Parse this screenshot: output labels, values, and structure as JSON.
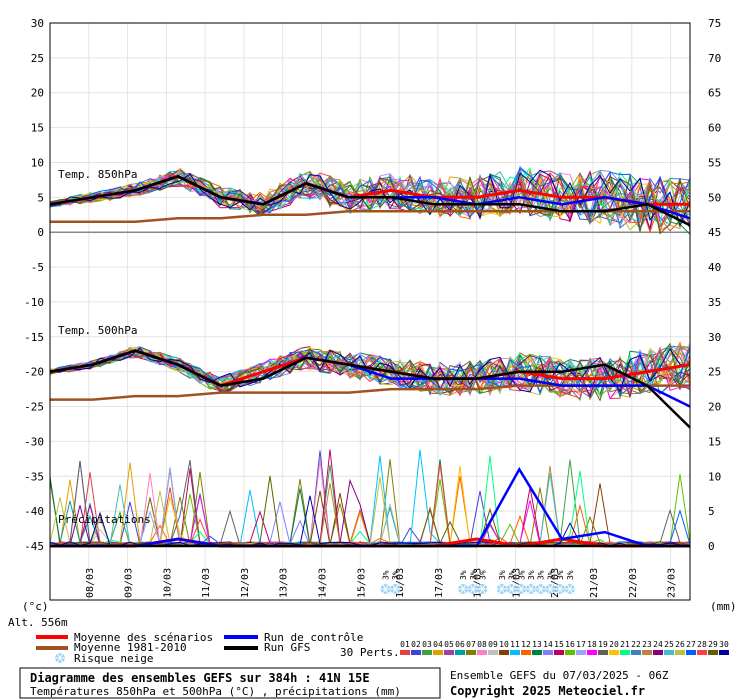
{
  "chart_data": {
    "type": "line",
    "x": [
      "08/03",
      "09/03",
      "10/03",
      "11/03",
      "12/03",
      "13/03",
      "14/03",
      "15/03",
      "16/03",
      "17/03",
      "18/03",
      "19/03",
      "20/03",
      "21/03",
      "22/03",
      "23/03"
    ],
    "left_axis": {
      "unit": "(°c)",
      "ticks": [
        "30",
        "25",
        "20",
        "15",
        "10",
        "5",
        "0",
        "-5",
        "-10",
        "-15",
        "-20",
        "-25",
        "-30",
        "-35",
        "-40",
        "-45"
      ],
      "ylim": [
        -45,
        30
      ]
    },
    "right_axis": {
      "unit": "(mm)",
      "ticks": [
        "75",
        "70",
        "65",
        "60",
        "55",
        "50",
        "45",
        "40",
        "35",
        "30",
        "25",
        "20",
        "15",
        "10",
        "5",
        "0"
      ],
      "ylim": [
        0,
        75
      ]
    },
    "altitude": "Alt. 556m",
    "panels": [
      {
        "label": "Temp. 850hPa"
      },
      {
        "label": "Temp. 500hPa"
      },
      {
        "label": "Précipitations"
      }
    ],
    "series": [
      {
        "name": "Moyenne des scénarios",
        "color": "#ff0000",
        "t850": [
          4,
          5,
          6,
          8,
          5,
          4,
          7,
          5,
          6,
          5,
          5,
          6,
          5,
          5,
          4,
          4
        ],
        "t500": [
          -20,
          -19,
          -17,
          -19,
          -22,
          -20,
          -18,
          -19,
          -20,
          -21,
          -21,
          -20,
          -21,
          -21,
          -20,
          -19
        ],
        "precip": [
          0,
          0,
          0,
          1,
          0,
          0,
          0,
          0,
          0,
          0,
          1,
          0,
          1,
          0,
          0,
          0
        ]
      },
      {
        "name": "Moyenne 1981-2010",
        "color": "#a0521e",
        "t850": [
          1.5,
          1.5,
          1.5,
          2,
          2,
          2.5,
          2.5,
          3,
          3,
          3,
          3,
          3,
          3,
          3,
          3,
          3
        ],
        "t500": [
          -24,
          -24,
          -23.5,
          -23.5,
          -23,
          -23,
          -23,
          -23,
          -22.5,
          -22.5,
          -22.5,
          -22,
          -22,
          -22,
          -22,
          -22
        ],
        "precip": []
      },
      {
        "name": "Run de contrôle",
        "color": "#0000ff",
        "t850": [
          4,
          5,
          6,
          8,
          5,
          4,
          7,
          5,
          5,
          5,
          4,
          5,
          4,
          5,
          4,
          2
        ],
        "t500": [
          -20,
          -19,
          -17,
          -19,
          -22,
          -21,
          -18,
          -19,
          -21,
          -21,
          -21,
          -21,
          -22,
          -22,
          -22,
          -25
        ],
        "precip": [
          0,
          0,
          0,
          1,
          0,
          0,
          0,
          0,
          0,
          0,
          0,
          11,
          1,
          2,
          0,
          0
        ]
      },
      {
        "name": "Run GFS",
        "color": "#000000",
        "t850": [
          4,
          5,
          6,
          8,
          5,
          4,
          7,
          5,
          5,
          4,
          4,
          4,
          3,
          3,
          4,
          1
        ],
        "t500": [
          -20,
          -19,
          -17,
          -19,
          -22,
          -21,
          -18,
          -19,
          -20,
          -21,
          -21,
          -20,
          -20,
          -19,
          -22,
          -28
        ],
        "precip": [
          0,
          0,
          0,
          0,
          0,
          0,
          0,
          0,
          0,
          0,
          0,
          0,
          0,
          0,
          0,
          0
        ]
      }
    ],
    "legend": [
      "Moyenne des scénarios",
      "Run de contrôle",
      "Moyenne 1981-2010",
      "Run GFS"
    ],
    "snow_risk": {
      "label": "Risque neige",
      "dates": [
        "16/03",
        "16/03",
        "18/03",
        "18/03",
        "18/03",
        "19/03",
        "19/03",
        "19/03",
        "19/03",
        "20/03",
        "20/03",
        "20/03",
        "20/03"
      ],
      "mark": "3%"
    },
    "perturbations": {
      "label": "30 Perts.",
      "numbers": [
        "01",
        "02",
        "03",
        "04",
        "05",
        "06",
        "07",
        "08",
        "09",
        "10",
        "11",
        "12",
        "13",
        "14",
        "15",
        "16",
        "17",
        "18",
        "19",
        "20",
        "21",
        "22",
        "23",
        "24",
        "25",
        "26",
        "27",
        "28",
        "29",
        "30"
      ],
      "colors": [
        "#e04040",
        "#4040e0",
        "#40a040",
        "#e0a000",
        "#a040a0",
        "#00a0a0",
        "#808000",
        "#ff80c0",
        "#c0c0c0",
        "#804000",
        "#00c0ff",
        "#ff6000",
        "#008040",
        "#8080ff",
        "#c00060",
        "#60c000",
        "#a0a0ff",
        "#ff00ff",
        "#606060",
        "#ffc000",
        "#00ff80",
        "#4080c0",
        "#c08040",
        "#800080",
        "#40c0c0",
        "#c0c040",
        "#0060ff",
        "#ff4040",
        "#606000",
        "#0000a0"
      ]
    }
  },
  "info": {
    "title": "Diagramme des ensembles GEFS sur 384h : 41N 15E",
    "subtitle": "Températures 850hPa et 500hPa (°C) , précipitations (mm)",
    "run": "Ensemble GEFS du 07/03/2025 - 06Z",
    "copyright": "Copyright 2025 Meteociel.fr"
  }
}
